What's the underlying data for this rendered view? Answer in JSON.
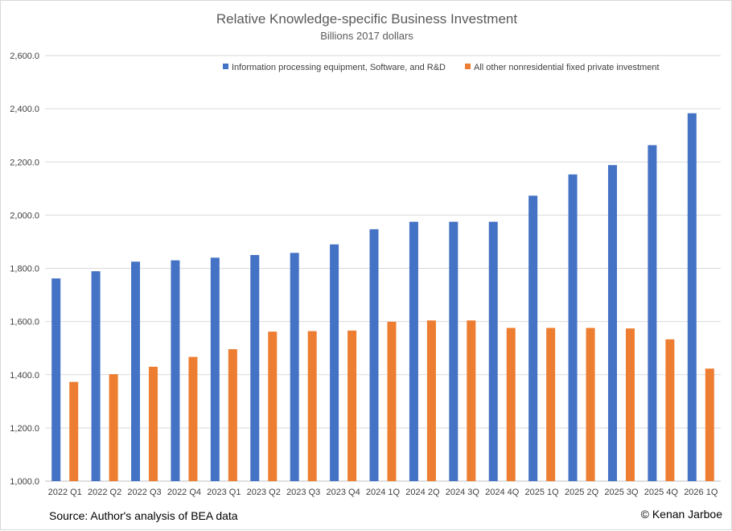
{
  "chart_data": {
    "type": "bar",
    "title": "Relative Knowledge-specific Business Investment",
    "subtitle": "Billions 2017 dollars",
    "xlabel": "",
    "ylabel": "",
    "ylim": [
      1000,
      2600
    ],
    "y_ticks": [
      "1,000.0",
      "1,200.0",
      "1,400.0",
      "1,600.0",
      "1,800.0",
      "2,000.0",
      "2,200.0",
      "2,400.0",
      "2,600.0"
    ],
    "y_tick_values": [
      1000,
      1200,
      1400,
      1600,
      1800,
      2000,
      2200,
      2400,
      2600
    ],
    "grid": true,
    "legend_position": "top",
    "categories": [
      "2022 Q1",
      "2022 Q2",
      "2022 Q3",
      "2022 Q4",
      "2023 Q1",
      "2023 Q2",
      "2023 Q3",
      "2023 Q4",
      "2024 1Q",
      "2024 2Q",
      "2024 3Q",
      "2024 4Q",
      "2025 1Q",
      "2025 2Q",
      "2025 3Q",
      "2025 4Q",
      "2026 1Q"
    ],
    "series": [
      {
        "name": "Information processing equipment, Software, and R&D",
        "color": "#4472C4",
        "values": [
          1762,
          1789,
          1825,
          1830,
          1840,
          1850,
          1858,
          1890,
          1947,
          1975,
          1975,
          1975,
          2073,
          2153,
          2188,
          2263,
          2383
        ]
      },
      {
        "name": "All other nonresidential fixed private investment",
        "color": "#ED7D31",
        "values": [
          1373,
          1402,
          1430,
          1467,
          1496,
          1562,
          1564,
          1566,
          1599,
          1604,
          1604,
          1576,
          1576,
          1576,
          1574,
          1533,
          1423
        ]
      }
    ]
  },
  "notes": {
    "source": "Source: Author's analysis of BEA data",
    "copyright": "© Kenan Jarboe"
  },
  "colors": {
    "grid": "#d9d9d9",
    "axis": "#bfbfbf",
    "title": "#595959"
  }
}
